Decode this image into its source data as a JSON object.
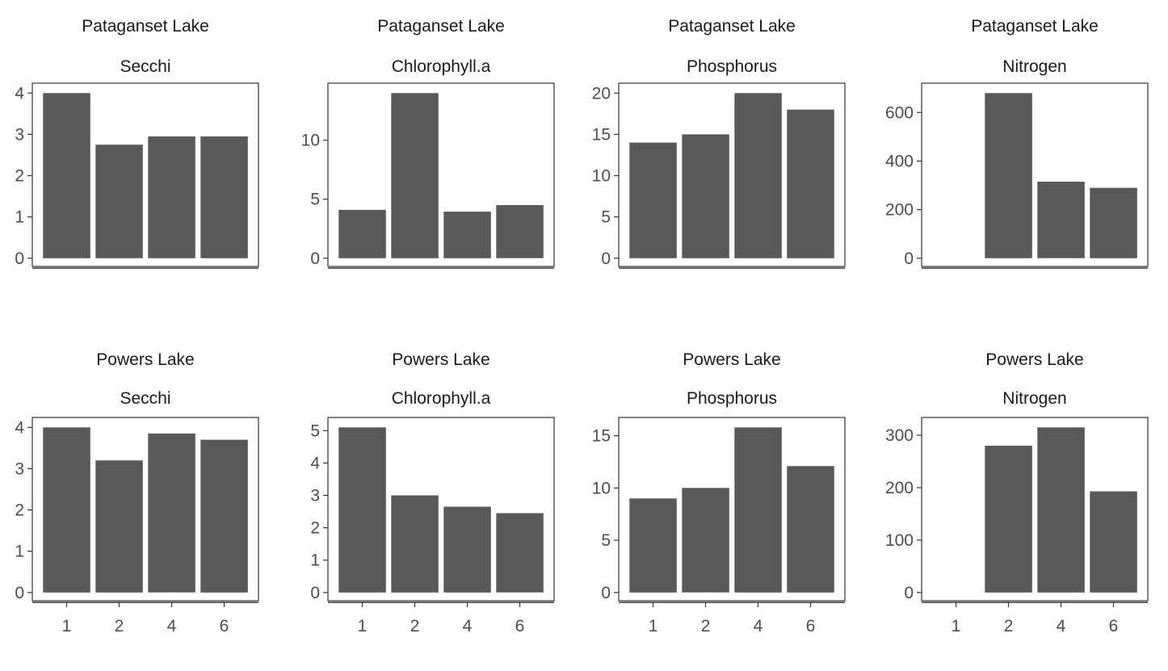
{
  "chart_data": [
    {
      "type": "bar",
      "title": "Pataganset Lake",
      "subtitle": "Secchi",
      "categories": [
        "1",
        "2",
        "4",
        "6"
      ],
      "values": [
        4.0,
        2.75,
        2.95,
        2.95
      ],
      "yticks": [
        0,
        1,
        2,
        3,
        4
      ],
      "ylim": [
        0,
        4.2
      ],
      "show_x_labels": false
    },
    {
      "type": "bar",
      "title": "Pataganset Lake",
      "subtitle": "Chlorophyll.a",
      "categories": [
        "1",
        "2",
        "4",
        "6"
      ],
      "values": [
        4.1,
        14.0,
        3.95,
        4.5
      ],
      "yticks": [
        0,
        5,
        10
      ],
      "ylim": [
        0,
        14.7
      ],
      "show_x_labels": false
    },
    {
      "type": "bar",
      "title": "Pataganset Lake",
      "subtitle": "Phosphorus",
      "categories": [
        "1",
        "2",
        "4",
        "6"
      ],
      "values": [
        14,
        15,
        20,
        18
      ],
      "yticks": [
        0,
        5,
        10,
        15,
        20
      ],
      "ylim": [
        0,
        21
      ],
      "show_x_labels": false
    },
    {
      "type": "bar",
      "title": "Pataganset Lake",
      "subtitle": "Nitrogen",
      "categories": [
        "1",
        "2",
        "4",
        "6"
      ],
      "values": [
        0,
        680,
        315,
        290
      ],
      "yticks": [
        0,
        200,
        400,
        600
      ],
      "ylim": [
        0,
        714
      ],
      "show_x_labels": false
    },
    {
      "type": "bar",
      "title": "Powers Lake",
      "subtitle": "Secchi",
      "categories": [
        "1",
        "2",
        "4",
        "6"
      ],
      "values": [
        4.0,
        3.2,
        3.85,
        3.7
      ],
      "yticks": [
        0,
        1,
        2,
        3,
        4
      ],
      "ylim": [
        0,
        4.2
      ],
      "show_x_labels": true
    },
    {
      "type": "bar",
      "title": "Powers Lake",
      "subtitle": "Chlorophyll.a",
      "categories": [
        "1",
        "2",
        "4",
        "6"
      ],
      "values": [
        5.1,
        3.0,
        2.65,
        2.45
      ],
      "yticks": [
        0,
        1,
        2,
        3,
        4,
        5
      ],
      "ylim": [
        0,
        5.355
      ],
      "show_x_labels": true
    },
    {
      "type": "bar",
      "title": "Powers Lake",
      "subtitle": "Phosphorus",
      "categories": [
        "1",
        "2",
        "4",
        "6"
      ],
      "values": [
        9,
        10,
        15.8,
        12.1
      ],
      "yticks": [
        0,
        5,
        10,
        15
      ],
      "ylim": [
        0,
        16.59
      ],
      "show_x_labels": true
    },
    {
      "type": "bar",
      "title": "Powers Lake",
      "subtitle": "Nitrogen",
      "categories": [
        "1",
        "2",
        "4",
        "6"
      ],
      "values": [
        0,
        280,
        315,
        193
      ],
      "yticks": [
        0,
        100,
        200,
        300
      ],
      "ylim": [
        0,
        330.75
      ],
      "show_x_labels": true
    }
  ]
}
